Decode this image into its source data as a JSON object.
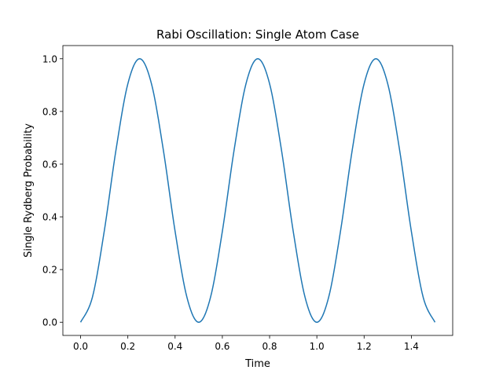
{
  "chart_data": {
    "type": "line",
    "title": "Rabi Oscillation: Single Atom Case",
    "xlabel": "Time",
    "ylabel": "Single Rydberg Probability",
    "xlim": [
      -0.075,
      1.575
    ],
    "ylim": [
      -0.05,
      1.05
    ],
    "xticks": [
      0.0,
      0.2,
      0.4,
      0.6,
      0.8,
      1.0,
      1.2,
      1.4
    ],
    "xtick_labels": [
      "0.0",
      "0.2",
      "0.4",
      "0.6",
      "0.8",
      "1.0",
      "1.2",
      "1.4"
    ],
    "yticks": [
      0.0,
      0.2,
      0.4,
      0.6,
      0.8,
      1.0
    ],
    "ytick_labels": [
      "0.0",
      "0.2",
      "0.4",
      "0.6",
      "0.8",
      "1.0"
    ],
    "grid": false,
    "series": [
      {
        "color": "#1f77b4",
        "x": [
          0.0,
          0.05,
          0.1,
          0.15,
          0.2,
          0.25,
          0.3,
          0.35,
          0.4,
          0.45,
          0.5,
          0.55,
          0.6,
          0.65,
          0.7,
          0.75,
          0.8,
          0.85,
          0.9,
          0.95,
          1.0,
          1.05,
          1.1,
          1.15,
          1.2,
          1.25,
          1.3,
          1.35,
          1.4,
          1.45,
          1.5
        ],
        "y": [
          0.0,
          0.095,
          0.345,
          0.655,
          0.905,
          1.0,
          0.905,
          0.655,
          0.345,
          0.095,
          0.0,
          0.095,
          0.345,
          0.655,
          0.905,
          1.0,
          0.905,
          0.655,
          0.345,
          0.095,
          0.0,
          0.095,
          0.345,
          0.655,
          0.905,
          1.0,
          0.905,
          0.655,
          0.345,
          0.095,
          0.0
        ]
      }
    ]
  }
}
